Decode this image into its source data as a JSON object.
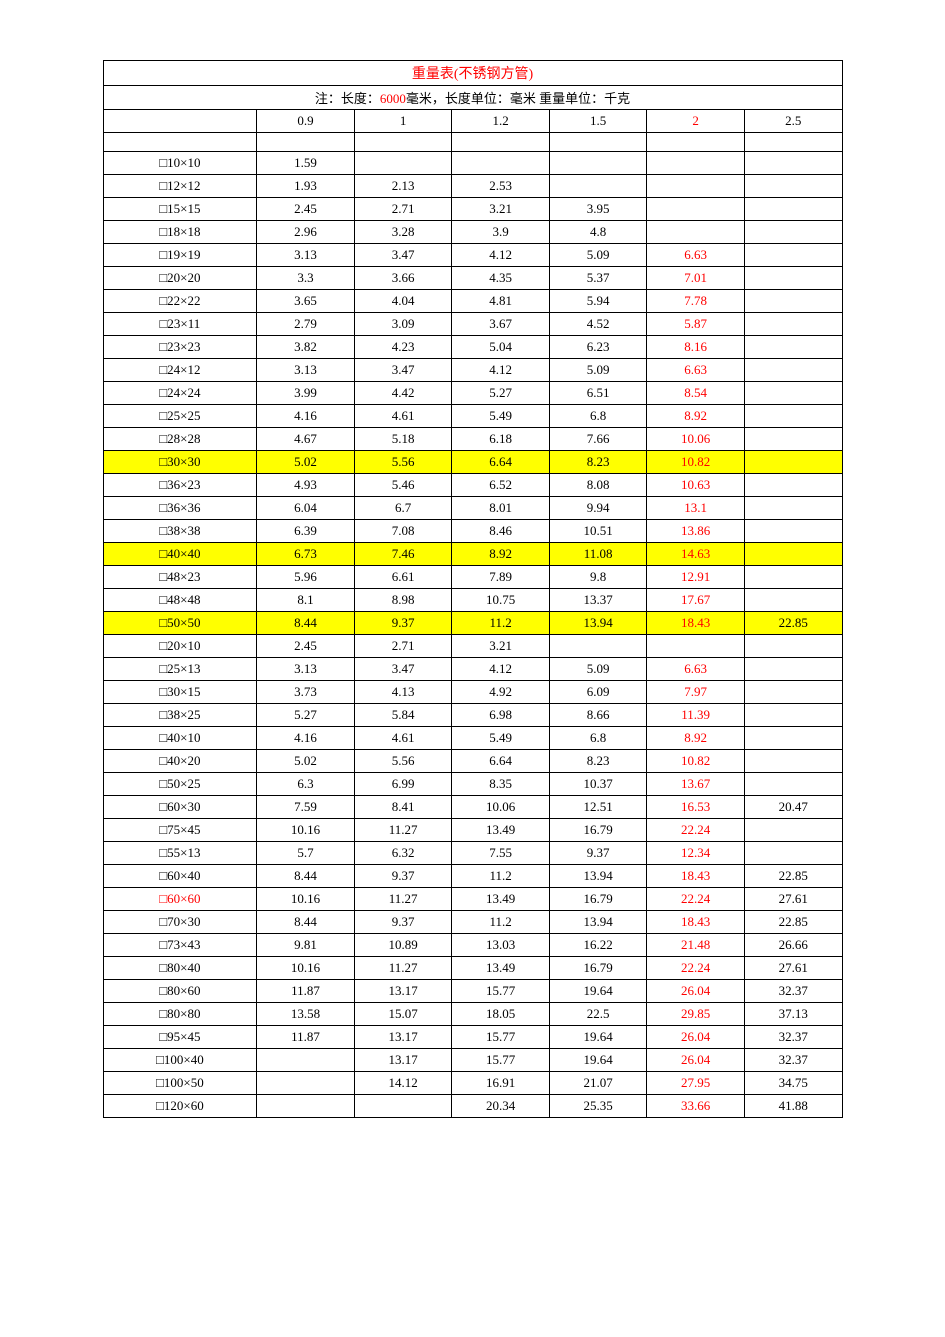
{
  "table": {
    "title": "重量表(不锈钢方管)",
    "note_parts": {
      "p1": "注：长度：",
      "p2": "6000",
      "p3": "毫米，长度单位：毫米  重量单位：千克"
    },
    "headers": [
      "0.9",
      "1",
      "1.2",
      "1.5",
      "2",
      "2.5"
    ],
    "header_red_index": 4,
    "highlight_color": "#ffff00",
    "red_color": "#ff0000",
    "border_color": "#000000",
    "background_color": "#ffffff",
    "font_family": "SimSun",
    "font_size": 13,
    "col_size_width": 150,
    "col_val_width": 90,
    "rows": [
      {
        "size": "□10×10",
        "vals": [
          "1.59",
          "",
          "",
          "",
          "",
          ""
        ],
        "col5_red": false,
        "highlight": false,
        "size_red": false
      },
      {
        "size": "□12×12",
        "vals": [
          "1.93",
          "2.13",
          "2.53",
          "",
          "",
          ""
        ],
        "col5_red": false,
        "highlight": false,
        "size_red": false
      },
      {
        "size": "□15×15",
        "vals": [
          "2.45",
          "2.71",
          "3.21",
          "3.95",
          "",
          ""
        ],
        "col5_red": false,
        "highlight": false,
        "size_red": false
      },
      {
        "size": "□18×18",
        "vals": [
          "2.96",
          "3.28",
          "3.9",
          "4.8",
          "",
          ""
        ],
        "col5_red": false,
        "highlight": false,
        "size_red": false
      },
      {
        "size": "□19×19",
        "vals": [
          "3.13",
          "3.47",
          "4.12",
          "5.09",
          "6.63",
          ""
        ],
        "col5_red": true,
        "highlight": false,
        "size_red": false
      },
      {
        "size": "□20×20",
        "vals": [
          "3.3",
          "3.66",
          "4.35",
          "5.37",
          "7.01",
          ""
        ],
        "col5_red": true,
        "highlight": false,
        "size_red": false
      },
      {
        "size": "□22×22",
        "vals": [
          "3.65",
          "4.04",
          "4.81",
          "5.94",
          "7.78",
          ""
        ],
        "col5_red": true,
        "highlight": false,
        "size_red": false
      },
      {
        "size": "□23×11",
        "vals": [
          "2.79",
          "3.09",
          "3.67",
          "4.52",
          "5.87",
          ""
        ],
        "col5_red": true,
        "highlight": false,
        "size_red": false
      },
      {
        "size": "□23×23",
        "vals": [
          "3.82",
          "4.23",
          "5.04",
          "6.23",
          "8.16",
          ""
        ],
        "col5_red": true,
        "highlight": false,
        "size_red": false
      },
      {
        "size": "□24×12",
        "vals": [
          "3.13",
          "3.47",
          "4.12",
          "5.09",
          "6.63",
          ""
        ],
        "col5_red": true,
        "highlight": false,
        "size_red": false
      },
      {
        "size": "□24×24",
        "vals": [
          "3.99",
          "4.42",
          "5.27",
          "6.51",
          "8.54",
          ""
        ],
        "col5_red": true,
        "highlight": false,
        "size_red": false
      },
      {
        "size": "□25×25",
        "vals": [
          "4.16",
          "4.61",
          "5.49",
          "6.8",
          "8.92",
          ""
        ],
        "col5_red": true,
        "highlight": false,
        "size_red": false
      },
      {
        "size": "□28×28",
        "vals": [
          "4.67",
          "5.18",
          "6.18",
          "7.66",
          "10.06",
          ""
        ],
        "col5_red": true,
        "highlight": false,
        "size_red": false
      },
      {
        "size": "□30×30",
        "vals": [
          "5.02",
          "5.56",
          "6.64",
          "8.23",
          "10.82",
          ""
        ],
        "col5_red": true,
        "highlight": true,
        "size_red": false
      },
      {
        "size": "□36×23",
        "vals": [
          "4.93",
          "5.46",
          "6.52",
          "8.08",
          "10.63",
          ""
        ],
        "col5_red": true,
        "highlight": false,
        "size_red": false
      },
      {
        "size": "□36×36",
        "vals": [
          "6.04",
          "6.7",
          "8.01",
          "9.94",
          "13.1",
          ""
        ],
        "col5_red": true,
        "highlight": false,
        "size_red": false
      },
      {
        "size": "□38×38",
        "vals": [
          "6.39",
          "7.08",
          "8.46",
          "10.51",
          "13.86",
          ""
        ],
        "col5_red": true,
        "highlight": false,
        "size_red": false
      },
      {
        "size": "□40×40",
        "vals": [
          "6.73",
          "7.46",
          "8.92",
          "11.08",
          "14.63",
          ""
        ],
        "col5_red": true,
        "highlight": true,
        "size_red": false
      },
      {
        "size": "□48×23",
        "vals": [
          "5.96",
          "6.61",
          "7.89",
          "9.8",
          "12.91",
          ""
        ],
        "col5_red": true,
        "highlight": false,
        "size_red": false
      },
      {
        "size": "□48×48",
        "vals": [
          "8.1",
          "8.98",
          "10.75",
          "13.37",
          "17.67",
          ""
        ],
        "col5_red": true,
        "highlight": false,
        "size_red": false
      },
      {
        "size": "□50×50",
        "vals": [
          "8.44",
          "9.37",
          "11.2",
          "13.94",
          "18.43",
          "22.85"
        ],
        "col5_red": true,
        "highlight": true,
        "size_red": false
      },
      {
        "size": "□20×10",
        "vals": [
          "2.45",
          "2.71",
          "3.21",
          "",
          "",
          ""
        ],
        "col5_red": false,
        "highlight": false,
        "size_red": false
      },
      {
        "size": "□25×13",
        "vals": [
          "3.13",
          "3.47",
          "4.12",
          "5.09",
          "6.63",
          ""
        ],
        "col5_red": true,
        "highlight": false,
        "size_red": false
      },
      {
        "size": "□30×15",
        "vals": [
          "3.73",
          "4.13",
          "4.92",
          "6.09",
          "7.97",
          ""
        ],
        "col5_red": true,
        "highlight": false,
        "size_red": false
      },
      {
        "size": "□38×25",
        "vals": [
          "5.27",
          "5.84",
          "6.98",
          "8.66",
          "11.39",
          ""
        ],
        "col5_red": true,
        "highlight": false,
        "size_red": false
      },
      {
        "size": "□40×10",
        "vals": [
          "4.16",
          "4.61",
          "5.49",
          "6.8",
          "8.92",
          ""
        ],
        "col5_red": true,
        "highlight": false,
        "size_red": false
      },
      {
        "size": "□40×20",
        "vals": [
          "5.02",
          "5.56",
          "6.64",
          "8.23",
          "10.82",
          ""
        ],
        "col5_red": true,
        "highlight": false,
        "size_red": false
      },
      {
        "size": "□50×25",
        "vals": [
          "6.3",
          "6.99",
          "8.35",
          "10.37",
          "13.67",
          ""
        ],
        "col5_red": true,
        "highlight": false,
        "size_red": false
      },
      {
        "size": "□60×30",
        "vals": [
          "7.59",
          "8.41",
          "10.06",
          "12.51",
          "16.53",
          "20.47"
        ],
        "col5_red": true,
        "highlight": false,
        "size_red": false
      },
      {
        "size": "□75×45",
        "vals": [
          "10.16",
          "11.27",
          "13.49",
          "16.79",
          "22.24",
          ""
        ],
        "col5_red": true,
        "highlight": false,
        "size_red": false
      },
      {
        "size": "□55×13",
        "vals": [
          "5.7",
          "6.32",
          "7.55",
          "9.37",
          "12.34",
          ""
        ],
        "col5_red": true,
        "highlight": false,
        "size_red": false
      },
      {
        "size": "□60×40",
        "vals": [
          "8.44",
          "9.37",
          "11.2",
          "13.94",
          "18.43",
          "22.85"
        ],
        "col5_red": true,
        "highlight": false,
        "size_red": false
      },
      {
        "size": "□60×60",
        "vals": [
          "10.16",
          "11.27",
          "13.49",
          "16.79",
          "22.24",
          "27.61"
        ],
        "col5_red": true,
        "highlight": false,
        "size_red": true
      },
      {
        "size": "□70×30",
        "vals": [
          "8.44",
          "9.37",
          "11.2",
          "13.94",
          "18.43",
          "22.85"
        ],
        "col5_red": true,
        "highlight": false,
        "size_red": false
      },
      {
        "size": "□73×43",
        "vals": [
          "9.81",
          "10.89",
          "13.03",
          "16.22",
          "21.48",
          "26.66"
        ],
        "col5_red": true,
        "highlight": false,
        "size_red": false
      },
      {
        "size": "□80×40",
        "vals": [
          "10.16",
          "11.27",
          "13.49",
          "16.79",
          "22.24",
          "27.61"
        ],
        "col5_red": true,
        "highlight": false,
        "size_red": false
      },
      {
        "size": "□80×60",
        "vals": [
          "11.87",
          "13.17",
          "15.77",
          "19.64",
          "26.04",
          "32.37"
        ],
        "col5_red": true,
        "highlight": false,
        "size_red": false
      },
      {
        "size": "□80×80",
        "vals": [
          "13.58",
          "15.07",
          "18.05",
          "22.5",
          "29.85",
          "37.13"
        ],
        "col5_red": true,
        "highlight": false,
        "size_red": false
      },
      {
        "size": "□95×45",
        "vals": [
          "11.87",
          "13.17",
          "15.77",
          "19.64",
          "26.04",
          "32.37"
        ],
        "col5_red": true,
        "highlight": false,
        "size_red": false
      },
      {
        "size": "□100×40",
        "vals": [
          "",
          "13.17",
          "15.77",
          "19.64",
          "26.04",
          "32.37"
        ],
        "col5_red": true,
        "highlight": false,
        "size_red": false
      },
      {
        "size": "□100×50",
        "vals": [
          "",
          "14.12",
          "16.91",
          "21.07",
          "27.95",
          "34.75"
        ],
        "col5_red": true,
        "highlight": false,
        "size_red": false
      },
      {
        "size": "□120×60",
        "vals": [
          "",
          "",
          "20.34",
          "25.35",
          "33.66",
          "41.88"
        ],
        "col5_red": true,
        "highlight": false,
        "size_red": false
      }
    ]
  }
}
